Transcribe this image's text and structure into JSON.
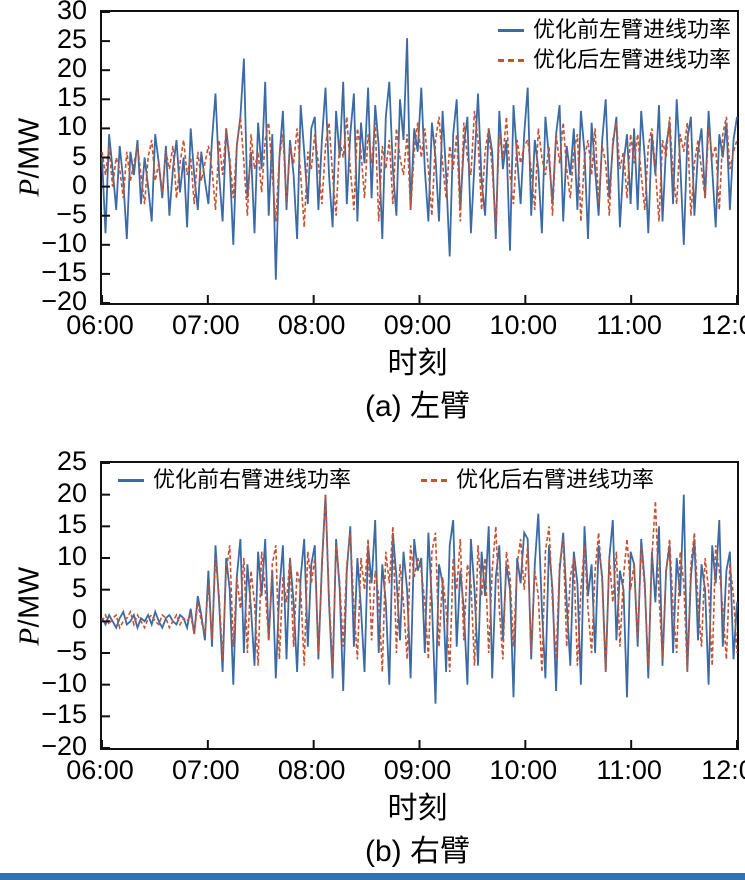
{
  "page": {
    "background": "#ffffff",
    "axis_color": "#111111",
    "bottom_bar_color": "#2e74b5",
    "series_blue": "#3b6ba5",
    "series_red": "#c9512e"
  },
  "chart_data": [
    {
      "type": "line",
      "caption": "(a) 左臂",
      "xlabel": "时刻",
      "ylabel": "P/MW",
      "ylabel_var": "P",
      "ylabel_unit": "/MW",
      "ylim": [
        -20,
        30
      ],
      "yticks": [
        30,
        25,
        20,
        15,
        10,
        5,
        0,
        -5,
        -10,
        -15,
        -20
      ],
      "xticklabels": [
        "06:00",
        "07:00",
        "08:00",
        "09:00",
        "10:00",
        "11:00",
        "12:00"
      ],
      "legend_position": "upper right",
      "grid": false,
      "series": [
        {
          "name": "优化前左臂进线功率",
          "color": "#3b6ba5",
          "line_style": "solid",
          "values": [
            5,
            -8,
            9,
            3,
            -4,
            7,
            1,
            -9,
            6,
            2,
            8,
            -3,
            5,
            0,
            -6,
            9,
            4,
            -2,
            7,
            -5,
            3,
            8,
            -1,
            5,
            -7,
            10,
            2,
            -4,
            6,
            1,
            -3,
            8,
            16,
            2,
            -6,
            10,
            4,
            -10,
            7,
            12,
            22,
            -2,
            6,
            -8,
            11,
            3,
            18,
            -5,
            9,
            -16,
            5,
            13,
            -4,
            8,
            2,
            -9,
            14,
            6,
            -3,
            10,
            12,
            -4,
            8,
            17,
            2,
            -7,
            13,
            5,
            18,
            -3,
            9,
            16,
            -6,
            11,
            4,
            17,
            -2,
            14,
            7,
            -9,
            12,
            18,
            3,
            -5,
            15,
            8,
            25.5,
            -4,
            10,
            6,
            17,
            3,
            -6,
            11,
            5,
            -6,
            13,
            2,
            -12,
            9,
            15,
            -4,
            7,
            12,
            -8,
            4,
            16,
            1,
            -5,
            10,
            6,
            -9,
            13,
            3,
            8,
            -11,
            14,
            5,
            -3,
            9,
            17,
            -5,
            8,
            3,
            -8,
            12,
            5,
            -3,
            9,
            14,
            -6,
            7,
            2,
            10,
            -4,
            13,
            6,
            -9,
            11,
            3,
            -5,
            8,
            15,
            -2,
            7,
            12,
            -7,
            4,
            9,
            -3,
            10,
            -4,
            13,
            5,
            -8,
            9,
            2,
            14,
            -6,
            7,
            11,
            -3,
            15,
            4,
            -10,
            8,
            12,
            -5,
            6,
            10,
            -2,
            13,
            3,
            -7,
            9,
            5,
            11,
            -4,
            8,
            12
          ]
        },
        {
          "name": "优化后左臂进线功率",
          "color": "#c9512e",
          "line_style": "dashed",
          "values": [
            6,
            2,
            7,
            0,
            5,
            3,
            -2,
            6,
            1,
            4,
            7,
            2,
            -3,
            5,
            8,
            1,
            4,
            -1,
            6,
            3,
            7,
            -2,
            4,
            8,
            2,
            5,
            -3,
            6,
            1,
            4,
            7,
            3,
            -4,
            8,
            2,
            10,
            5,
            -2,
            7,
            12,
            4,
            -5,
            9,
            3,
            6,
            -1,
            8,
            11,
            2,
            -6,
            5,
            9,
            -3,
            7,
            4,
            10,
            2,
            -7,
            6,
            3,
            9,
            4,
            -3,
            7,
            11,
            2,
            -5,
            8,
            5,
            12,
            3,
            -4,
            10,
            6,
            -2,
            9,
            4,
            11,
            -6,
            7,
            3,
            8,
            -3,
            10,
            5,
            2,
            9,
            -4,
            6,
            11,
            5,
            10,
            3,
            -5,
            8,
            12,
            4,
            -2,
            7,
            3,
            9,
            -6,
            11,
            5,
            2,
            13,
            8,
            -4,
            6,
            10,
            3,
            -7,
            9,
            5,
            12,
            2,
            -3,
            8,
            4,
            7,
            8,
            3,
            -4,
            10,
            5,
            2,
            7,
            -5,
            9,
            4,
            11,
            3,
            -2,
            6,
            9,
            -6,
            5,
            8,
            2,
            10,
            -3,
            7,
            4,
            -5,
            8,
            11,
            3,
            6,
            -2,
            9,
            4,
            9,
            2,
            -4,
            7,
            10,
            3,
            -6,
            8,
            5,
            12,
            2,
            -3,
            9,
            6,
            11,
            -5,
            4,
            8,
            3,
            -2,
            10,
            5,
            7,
            -4,
            9,
            12,
            3,
            6,
            8
          ]
        }
      ]
    },
    {
      "type": "line",
      "caption": "(b) 右臂",
      "xlabel": "时刻",
      "ylabel": "P/MW",
      "ylabel_var": "P",
      "ylabel_unit": "/MW",
      "ylim": [
        -20,
        25
      ],
      "yticks": [
        25,
        20,
        15,
        10,
        5,
        0,
        -5,
        -10,
        -15,
        -20
      ],
      "xticklabels": [
        "06:00",
        "07:00",
        "08:00",
        "09:00",
        "10:00",
        "11:00",
        "12:00"
      ],
      "legend_position": "upper center",
      "grid": false,
      "series": [
        {
          "name": "优化前右臂进线功率",
          "color": "#3b6ba5",
          "line_style": "solid",
          "values": [
            0.5,
            -0.5,
            1,
            0,
            -1,
            0.5,
            1.5,
            -0.5,
            0,
            1,
            -1,
            0.5,
            0,
            1,
            -0.5,
            1.5,
            0,
            -1,
            0.5,
            1,
            0,
            -0.5,
            1,
            0.5,
            -1,
            2,
            -2,
            4,
            1,
            -3,
            8,
            -4,
            12,
            3,
            -8,
            10,
            5,
            -10,
            7,
            13,
            -5,
            9,
            2,
            -7,
            11,
            4,
            13,
            -3,
            8,
            -9,
            5,
            12,
            -6,
            10,
            3,
            -8,
            7,
            13,
            -4,
            9,
            12,
            -6,
            9,
            20,
            3,
            -9,
            13,
            5,
            -11,
            8,
            15,
            -4,
            10,
            2,
            -8,
            12,
            6,
            16,
            -5,
            9,
            3,
            -10,
            14,
            7,
            -3,
            11,
            5,
            -9,
            13,
            8,
            10,
            -5,
            14,
            3,
            -13,
            9,
            6,
            -8,
            12,
            16,
            -4,
            8,
            2,
            -10,
            13,
            5,
            -7,
            11,
            4,
            15,
            -9,
            7,
            12,
            -3,
            9,
            5,
            -12,
            10,
            6,
            14,
            13,
            -6,
            9,
            17,
            2,
            -9,
            12,
            5,
            -11,
            8,
            14,
            3,
            -7,
            11,
            6,
            -10,
            15,
            4,
            9,
            -5,
            12,
            7,
            -8,
            10,
            16,
            -3,
            8,
            5,
            -12,
            11,
            9,
            -4,
            13,
            6,
            -9,
            11,
            3,
            15,
            -7,
            8,
            12,
            -5,
            10,
            4,
            20,
            -8,
            7,
            13,
            -3,
            9,
            5,
            -10,
            12,
            6,
            16,
            -4,
            8,
            11,
            -6,
            3
          ]
        },
        {
          "name": "优化后右臂进线功率",
          "color": "#c9512e",
          "line_style": "dashed",
          "values": [
            0,
            1,
            -0.5,
            0.5,
            1,
            -1,
            0,
            0.5,
            1.5,
            -0.5,
            1,
            0,
            -1,
            0.5,
            1,
            0,
            -0.5,
            1,
            0.5,
            -1,
            0,
            1,
            -0.5,
            0.5,
            0,
            1,
            -2,
            3,
            0,
            -2,
            6,
            -3,
            10,
            4,
            -6,
            8,
            12,
            -4,
            7,
            2,
            10,
            -5,
            8,
            3,
            -7,
            11,
            5,
            -3,
            9,
            12,
            -6,
            7,
            3,
            10,
            -4,
            8,
            5,
            -7,
            11,
            6,
            10,
            -5,
            8,
            20,
            4,
            -7,
            12,
            6,
            -4,
            9,
            14,
            2,
            -6,
            10,
            5,
            13,
            -3,
            8,
            4,
            -8,
            11,
            6,
            15,
            -5,
            9,
            3,
            -6,
            12,
            7,
            10,
            8,
            3,
            -6,
            11,
            14,
            -4,
            7,
            2,
            -8,
            10,
            5,
            13,
            -3,
            9,
            6,
            -7,
            12,
            4,
            10,
            -5,
            8,
            15,
            2,
            -6,
            11,
            7,
            -4,
            9,
            13,
            5,
            12,
            -5,
            8,
            4,
            -8,
            11,
            15,
            3,
            -6,
            9,
            13,
            -4,
            7,
            10,
            -7,
            5,
            12,
            2,
            -5,
            8,
            14,
            6,
            -8,
            10,
            3,
            11,
            -4,
            7,
            13,
            5,
            9,
            -3,
            12,
            5,
            -7,
            10,
            19,
            4,
            -6,
            8,
            13,
            2,
            -5,
            11,
            6,
            -8,
            9,
            14,
            3,
            -4,
            10,
            5,
            -7,
            12,
            8,
            2,
            -6,
            9,
            4,
            -5
          ]
        }
      ]
    }
  ]
}
